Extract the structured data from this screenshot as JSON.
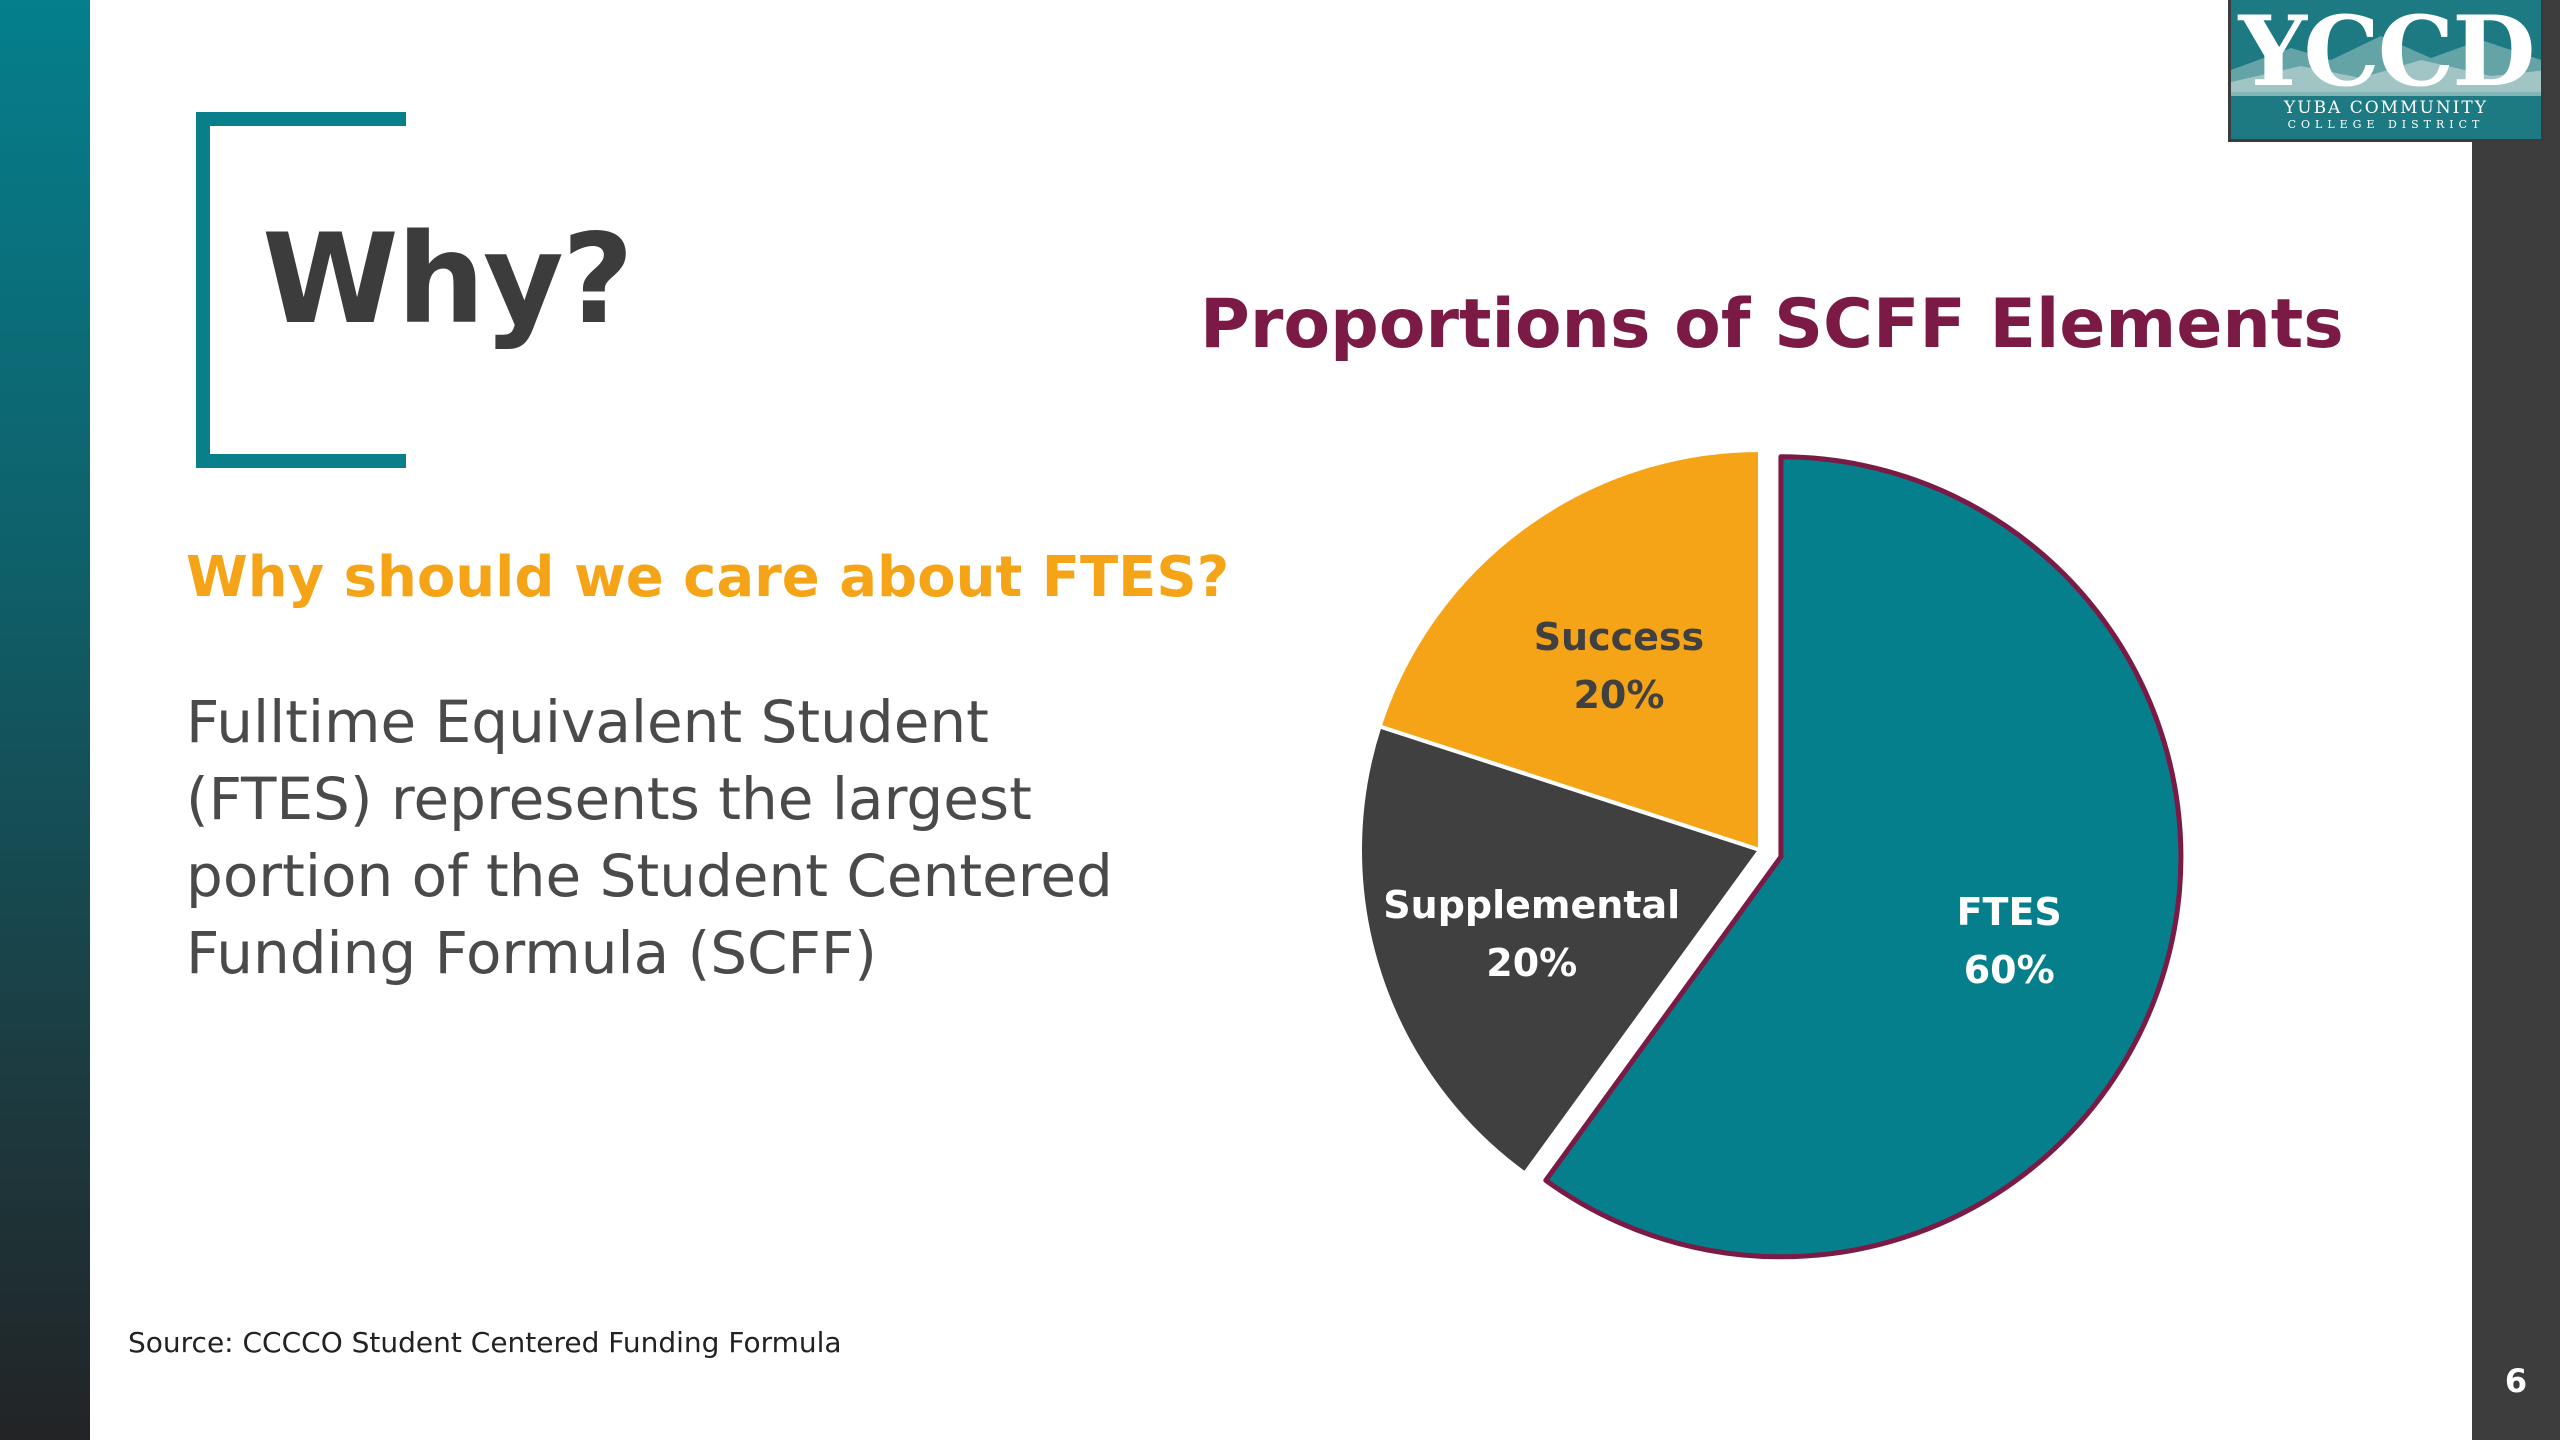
{
  "slide": {
    "title": "Why?",
    "subtitle": "Why should we care about FTES?",
    "body": "Fulltime Equivalent Student (FTES) represents the largest portion of the Student Centered Funding Formula (SCFF)",
    "source": "Source: CCCCO Student Centered Funding Formula",
    "page_number": "6"
  },
  "logo": {
    "wordmark": "YCCD",
    "line1": "YUBA COMMUNITY",
    "line2": "COLLEGE DISTRICT"
  },
  "colors": {
    "teal": "#097f8c",
    "orange": "#f5a418",
    "charcoal": "#404040",
    "maroon": "#7a1a45"
  },
  "chart_data": {
    "type": "pie",
    "title": "Proportions of SCFF Elements",
    "slices": [
      {
        "label": "FTES",
        "value": 60,
        "display": "60%",
        "color": "#057f8c",
        "label_color": "#ffffff",
        "exploded": true,
        "outline": "#7a1a45"
      },
      {
        "label": "Supplemental",
        "value": 20,
        "display": "20%",
        "color": "#404040",
        "label_color": "#ffffff",
        "exploded": false
      },
      {
        "label": "Success",
        "value": 20,
        "display": "20%",
        "color": "#f5a418",
        "label_color": "#404040",
        "exploded": false
      }
    ]
  }
}
